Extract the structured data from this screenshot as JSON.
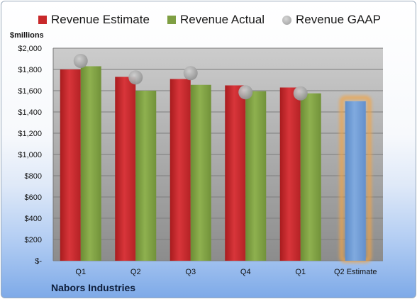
{
  "legend": {
    "estimate": "Revenue Estimate",
    "actual": "Revenue Actual",
    "gaap": "Revenue GAAP"
  },
  "unit_label": "$millions",
  "company": "Nabors Industries",
  "colors": {
    "estimate": "#c8282a",
    "actual": "#7f9f43",
    "gaap": "#a0a0a0",
    "future_estimate": "#6f9bd4",
    "highlight": "#f3a445",
    "plot_bg_top": "#c8c8c8",
    "plot_bg_bottom": "#8e8e8e"
  },
  "chart_data": {
    "type": "bar",
    "categories": [
      "Q1",
      "Q2",
      "Q3",
      "Q4",
      "Q1",
      "Q2 Estimate"
    ],
    "series": [
      {
        "name": "Revenue Estimate",
        "values": [
          1800,
          1730,
          1710,
          1650,
          1630,
          null
        ]
      },
      {
        "name": "Revenue Actual",
        "values": [
          1830,
          1600,
          1655,
          1595,
          1575,
          null
        ]
      },
      {
        "name": "Revenue GAAP",
        "marker": "circle",
        "values": [
          1880,
          1725,
          1765,
          1585,
          1575,
          null
        ]
      }
    ],
    "future_estimate": {
      "category": "Q2 Estimate",
      "value": 1500
    },
    "ylim": [
      0,
      2000
    ],
    "yticks": [
      "$-",
      "$200",
      "$400",
      "$600",
      "$800",
      "$1,000",
      "$1,200",
      "$1,400",
      "$1,600",
      "$1,800",
      "$2,000"
    ],
    "ylabel": "$millions",
    "grid": true,
    "legend_position": "top"
  }
}
